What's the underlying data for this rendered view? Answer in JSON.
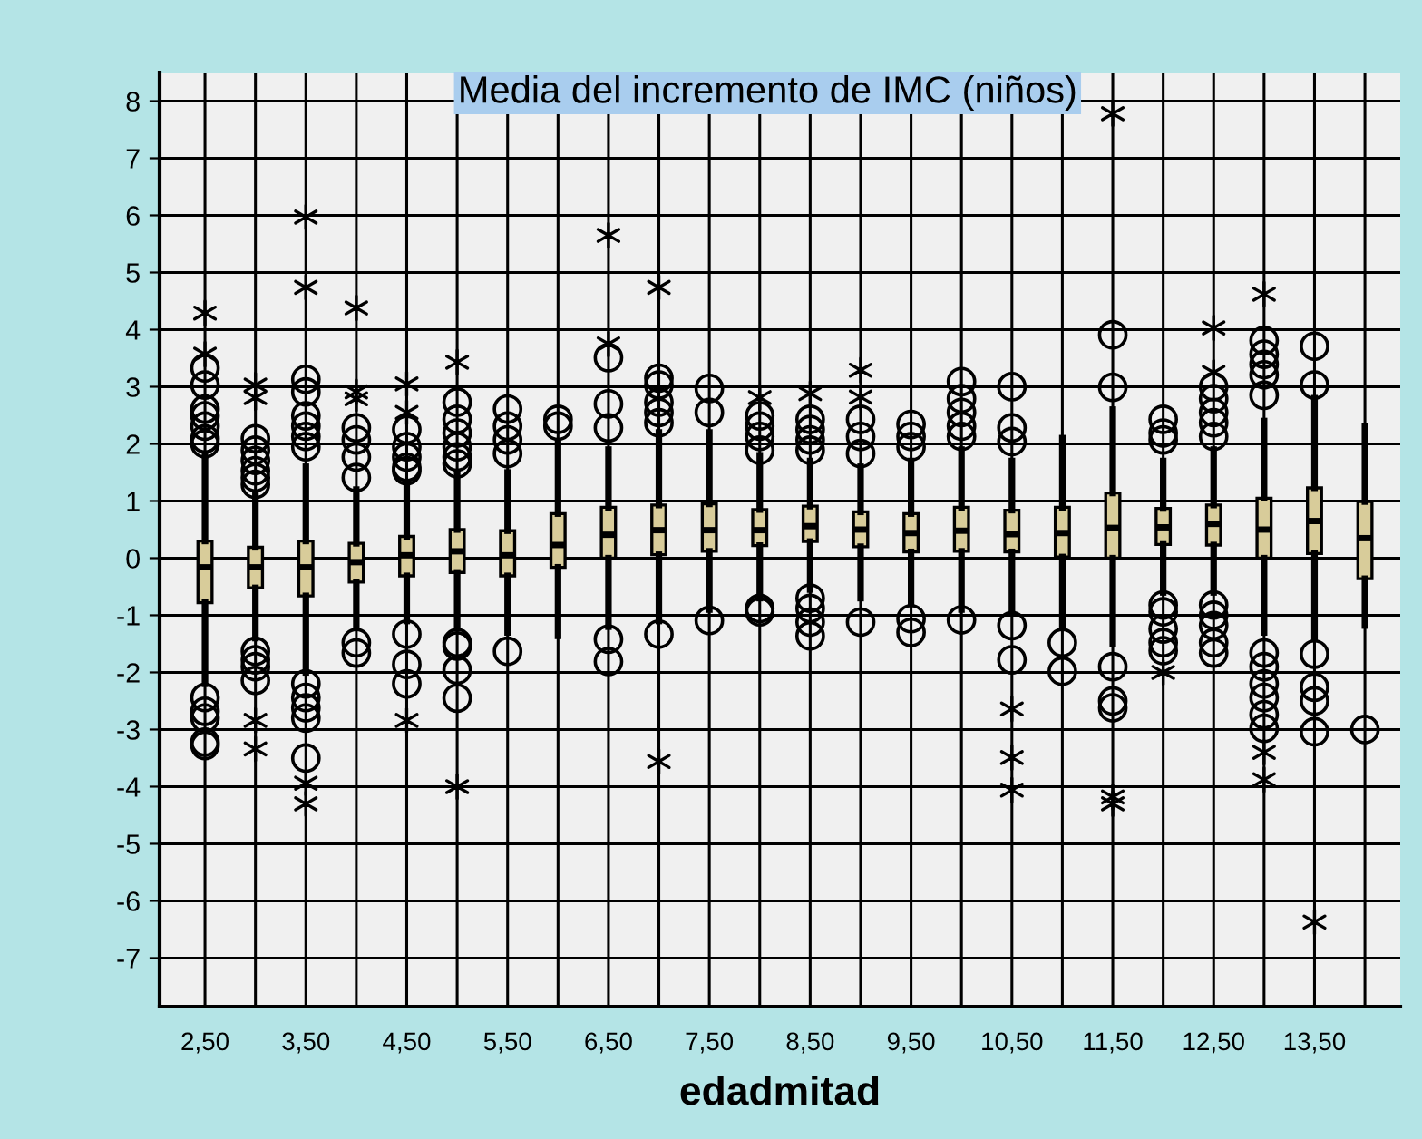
{
  "chart_data": {
    "type": "box",
    "title": "Media del incremento de IMC (niños)",
    "xlabel": "edadmitad",
    "categories": [
      "2,50",
      null,
      "3,50",
      null,
      "4,50",
      null,
      "5,50",
      null,
      "6,50",
      null,
      "7,50",
      null,
      "8,50",
      null,
      "9,50",
      null,
      "10,50",
      null,
      "11,50",
      null,
      "12,50",
      null,
      "13,50",
      null
    ],
    "ylim": [
      -7.85,
      8.5
    ],
    "yticks": [
      -7,
      -6,
      -5,
      -4,
      -3,
      -2,
      -1,
      0,
      1,
      2,
      3,
      4,
      5,
      6,
      7,
      8
    ],
    "grid": true,
    "color": "#d8cc9a",
    "boxes": [
      {
        "low": -2.2,
        "q1": -0.78,
        "median": -0.16,
        "q3": 0.3,
        "high": 1.8,
        "outliers": [
          3.33,
          3.03,
          2.61,
          2.49,
          2.31,
          2.09,
          2.0,
          3.57,
          4.29,
          -2.44,
          -2.68,
          -2.8,
          -3.22,
          -3.28
        ]
      },
      {
        "low": -1.4,
        "q1": -0.52,
        "median": -0.16,
        "q3": 0.19,
        "high": 1.1,
        "outliers": [
          2.09,
          1.89,
          1.71,
          1.53,
          1.41,
          1.29,
          3.03,
          2.81,
          -1.63,
          -1.78,
          -1.9,
          -2.14,
          -2.84,
          -3.34
        ]
      },
      {
        "low": -2.0,
        "q1": -0.66,
        "median": -0.16,
        "q3": 0.3,
        "high": 1.6,
        "outliers": [
          3.13,
          2.91,
          2.49,
          2.31,
          2.13,
          1.95,
          4.74,
          5.97,
          -2.2,
          -2.44,
          -2.62,
          -2.8,
          -3.5,
          -3.94,
          -4.3
        ]
      },
      {
        "low": -1.2,
        "q1": -0.42,
        "median": -0.07,
        "q3": 0.26,
        "high": 1.2,
        "outliers": [
          2.28,
          2.07,
          1.77,
          1.41,
          2.91,
          2.79,
          4.38,
          -1.48,
          -1.66
        ]
      },
      {
        "low": -1.1,
        "q1": -0.31,
        "median": 0.05,
        "q3": 0.38,
        "high": 1.3,
        "outliers": [
          2.25,
          1.95,
          1.77,
          1.59,
          1.53,
          3.05,
          2.55,
          -1.33,
          -1.86,
          -2.2,
          -2.84
        ]
      },
      {
        "low": -1.2,
        "q1": -0.25,
        "median": 0.12,
        "q3": 0.5,
        "high": 1.5,
        "outliers": [
          2.73,
          2.43,
          2.19,
          1.95,
          1.77,
          1.65,
          3.43,
          -1.48,
          -1.54,
          -1.96,
          -2.45,
          -4.0
        ]
      },
      {
        "low": -1.3,
        "q1": -0.31,
        "median": 0.05,
        "q3": 0.48,
        "high": 1.5,
        "outliers": [
          2.61,
          2.31,
          2.07,
          1.83,
          -1.63
        ]
      },
      {
        "low": -1.36,
        "q1": -0.16,
        "median": 0.23,
        "q3": 0.78,
        "high": 2.0,
        "outliers": [
          2.43,
          2.31
        ]
      },
      {
        "low": -1.2,
        "q1": 0.0,
        "median": 0.41,
        "q3": 0.89,
        "high": 1.9,
        "outliers": [
          3.51,
          2.7,
          2.28,
          3.75,
          5.65,
          -1.42,
          -1.81
        ]
      },
      {
        "low": -1.1,
        "q1": 0.06,
        "median": 0.49,
        "q3": 0.93,
        "high": 2.2,
        "outliers": [
          3.15,
          3.03,
          2.73,
          2.55,
          2.37,
          4.74,
          -1.33,
          -3.56
        ]
      },
      {
        "low": -0.9,
        "q1": 0.12,
        "median": 0.49,
        "q3": 0.95,
        "high": 2.2,
        "outliers": [
          2.97,
          2.55,
          -1.09
        ]
      },
      {
        "low": -0.7,
        "q1": 0.22,
        "median": 0.49,
        "q3": 0.85,
        "high": 1.8,
        "outliers": [
          2.49,
          2.31,
          2.13,
          1.89,
          2.81,
          -0.88,
          -0.94
        ]
      },
      {
        "low": -0.55,
        "q1": 0.29,
        "median": 0.56,
        "q3": 0.91,
        "high": 1.7,
        "outliers": [
          2.43,
          2.25,
          2.07,
          1.89,
          2.88,
          -0.7,
          -0.88,
          -1.12,
          -1.36
        ]
      },
      {
        "low": -0.7,
        "q1": 0.2,
        "median": 0.5,
        "q3": 0.81,
        "high": 1.6,
        "outliers": [
          2.43,
          2.13,
          1.83,
          3.29,
          2.82,
          -1.12
        ]
      },
      {
        "low": -0.8,
        "q1": 0.11,
        "median": 0.44,
        "q3": 0.78,
        "high": 1.7,
        "outliers": [
          2.34,
          2.13,
          1.95,
          -1.06,
          -1.3
        ]
      },
      {
        "low": -0.9,
        "q1": 0.12,
        "median": 0.48,
        "q3": 0.89,
        "high": 1.9,
        "outliers": [
          3.09,
          2.79,
          2.55,
          2.31,
          2.13,
          -1.08
        ]
      },
      {
        "low": -0.9,
        "q1": 0.11,
        "median": 0.42,
        "q3": 0.84,
        "high": 1.7,
        "outliers": [
          3.0,
          2.28,
          2.04,
          -1.18,
          -1.78,
          -2.64,
          -3.49,
          -4.06
        ]
      },
      {
        "low": -1.2,
        "q1": 0.02,
        "median": 0.44,
        "q3": 0.89,
        "high": 2.1,
        "outliers": [
          -1.48,
          -1.98
        ]
      },
      {
        "low": -1.5,
        "q1": 0.0,
        "median": 0.53,
        "q3": 1.14,
        "high": 2.6,
        "outliers": [
          3.91,
          2.99,
          7.78,
          -1.9,
          -2.5,
          -2.62,
          -4.18,
          -4.3
        ]
      },
      {
        "low": -0.6,
        "q1": 0.24,
        "median": 0.54,
        "q3": 0.87,
        "high": 1.7,
        "outliers": [
          2.43,
          2.19,
          2.07,
          -0.82,
          -0.94,
          -1.24,
          -1.48,
          -1.62,
          -2.0
        ]
      },
      {
        "low": -0.6,
        "q1": 0.23,
        "median": 0.6,
        "q3": 0.93,
        "high": 1.9,
        "outliers": [
          3.0,
          2.79,
          2.55,
          2.37,
          2.13,
          3.25,
          4.03,
          -0.82,
          -1.0,
          -1.18,
          -1.48,
          -1.66
        ]
      },
      {
        "low": -1.3,
        "q1": 0.0,
        "median": 0.5,
        "q3": 1.05,
        "high": 2.4,
        "outliers": [
          3.81,
          3.57,
          3.39,
          3.21,
          2.85,
          4.62,
          -1.66,
          -1.9,
          -2.2,
          -2.44,
          -2.74,
          -2.98,
          -3.4,
          -3.88
        ]
      },
      {
        "low": -1.4,
        "q1": 0.08,
        "median": 0.65,
        "q3": 1.23,
        "high": 2.8,
        "outliers": [
          3.71,
          3.03,
          -1.68,
          -2.26,
          -2.5,
          -3.04,
          -6.37
        ]
      },
      {
        "low": -1.18,
        "q1": -0.36,
        "median": 0.35,
        "q3": 0.99,
        "high": 2.31,
        "outliers": [
          -3.0
        ]
      }
    ]
  }
}
